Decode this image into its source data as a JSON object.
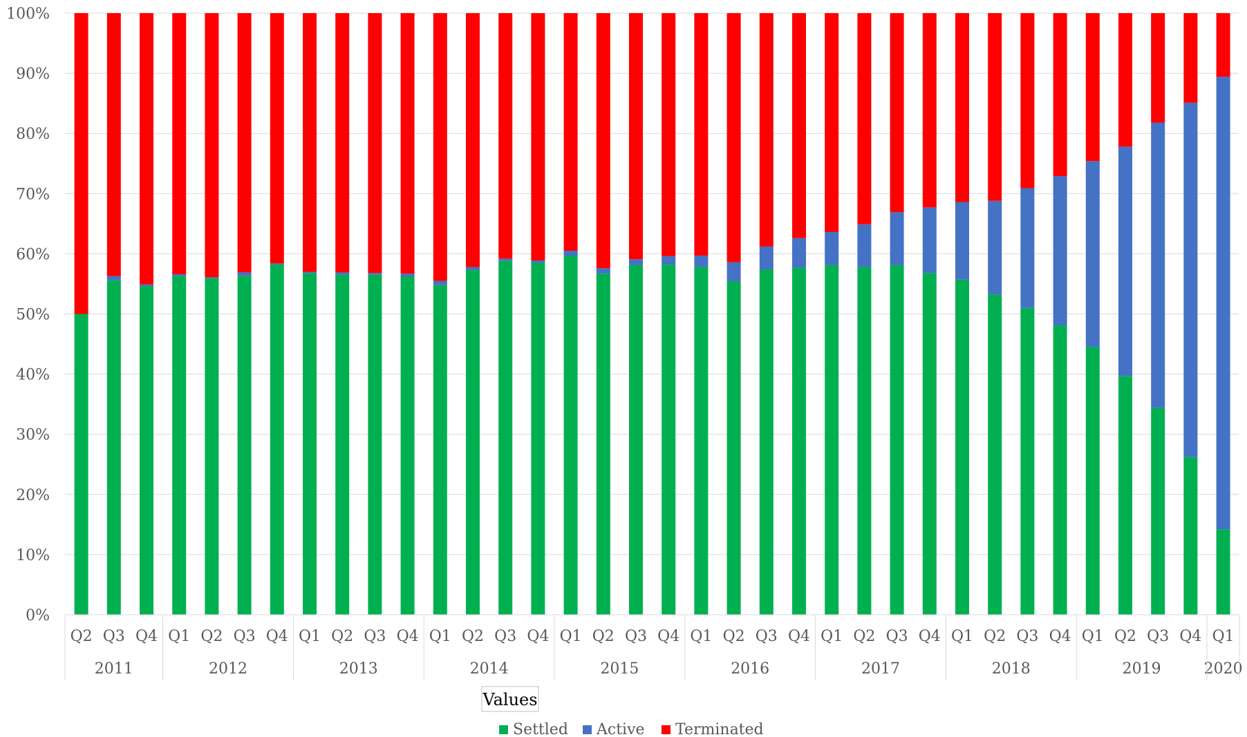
{
  "chart_data": {
    "type": "bar",
    "stacked": true,
    "percent": true,
    "ylim": [
      0,
      100
    ],
    "yticks": [
      "0%",
      "10%",
      "20%",
      "30%",
      "40%",
      "50%",
      "60%",
      "70%",
      "80%",
      "90%",
      "100%"
    ],
    "grid": true,
    "legend_title": "Values",
    "legend_position": "bottom",
    "year_groups": [
      {
        "year": "2011",
        "quarters": [
          "Q2",
          "Q3",
          "Q4"
        ]
      },
      {
        "year": "2012",
        "quarters": [
          "Q1",
          "Q2",
          "Q3",
          "Q4"
        ]
      },
      {
        "year": "2013",
        "quarters": [
          "Q1",
          "Q2",
          "Q3",
          "Q4"
        ]
      },
      {
        "year": "2014",
        "quarters": [
          "Q1",
          "Q2",
          "Q3",
          "Q4"
        ]
      },
      {
        "year": "2015",
        "quarters": [
          "Q1",
          "Q2",
          "Q3",
          "Q4"
        ]
      },
      {
        "year": "2016",
        "quarters": [
          "Q1",
          "Q2",
          "Q3",
          "Q4"
        ]
      },
      {
        "year": "2017",
        "quarters": [
          "Q1",
          "Q2",
          "Q3",
          "Q4"
        ]
      },
      {
        "year": "2018",
        "quarters": [
          "Q1",
          "Q2",
          "Q3",
          "Q4"
        ]
      },
      {
        "year": "2019",
        "quarters": [
          "Q1",
          "Q2",
          "Q3",
          "Q4"
        ]
      },
      {
        "year": "2020",
        "quarters": [
          "Q1"
        ]
      }
    ],
    "series": [
      {
        "name": "Settled",
        "color": "#00b050",
        "values": [
          50.0,
          55.6,
          54.6,
          56.3,
          55.9,
          56.3,
          58.2,
          56.8,
          56.5,
          56.5,
          56.2,
          54.8,
          57.3,
          58.8,
          58.5,
          59.7,
          56.7,
          58.1,
          58.2,
          57.8,
          55.4,
          57.4,
          57.7,
          58.1,
          57.8,
          58.1,
          56.8,
          55.7,
          53.2,
          51.0,
          48.1,
          44.5,
          39.7,
          34.4,
          26.2,
          14.2
        ]
      },
      {
        "name": "Active",
        "color": "#4472c4",
        "values": [
          0.0,
          0.7,
          0.3,
          0.3,
          0.2,
          0.6,
          0.2,
          0.2,
          0.4,
          0.3,
          0.5,
          0.7,
          0.5,
          0.4,
          0.4,
          0.8,
          0.9,
          1.0,
          1.4,
          1.9,
          3.2,
          3.8,
          4.9,
          5.5,
          7.1,
          8.8,
          10.9,
          12.9,
          15.6,
          19.9,
          24.8,
          30.9,
          38.1,
          47.4,
          58.9,
          75.2
        ]
      },
      {
        "name": "Terminated",
        "color": "#ff0000",
        "values": [
          50.0,
          43.7,
          45.1,
          43.4,
          43.9,
          43.1,
          41.6,
          43.0,
          43.1,
          43.2,
          43.3,
          44.5,
          42.2,
          40.8,
          41.1,
          39.5,
          42.4,
          40.9,
          40.4,
          40.3,
          41.4,
          38.8,
          37.4,
          36.4,
          35.1,
          33.1,
          32.3,
          31.4,
          31.2,
          29.1,
          27.1,
          24.6,
          22.2,
          18.2,
          14.9,
          10.6
        ]
      }
    ]
  }
}
